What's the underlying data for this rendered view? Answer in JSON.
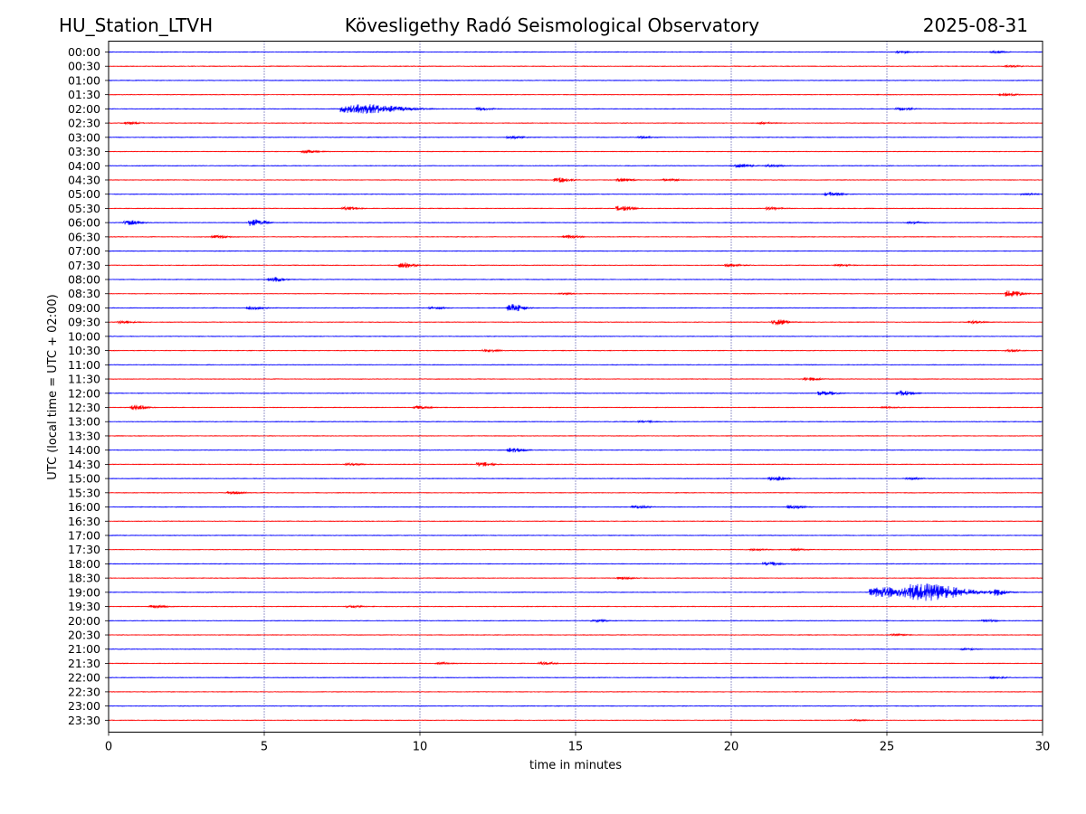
{
  "header": {
    "station": "HU_Station_LTVH",
    "observatory": "Kövesligethy Radó Seismological Observatory",
    "date": "2025-08-31"
  },
  "chart_data": {
    "type": "line",
    "title": "Kövesligethy Radó Seismological Observatory",
    "xlabel": "time in minutes",
    "ylabel": "UTC (local time = UTC + 02:00)",
    "xlim": [
      0,
      30
    ],
    "xticks": [
      0,
      5,
      10,
      15,
      20,
      25,
      30
    ],
    "grid": "vertical dotted at 5-minute intervals",
    "colors": {
      "even_rows": "#0000ff",
      "odd_rows": "#ff0000",
      "grid": "#000080"
    },
    "rows": [
      {
        "label": "00:00",
        "events": [
          [
            25.5,
            0.8
          ],
          [
            28.5,
            0.6
          ]
        ]
      },
      {
        "label": "00:30",
        "events": [
          [
            29.0,
            0.5
          ]
        ]
      },
      {
        "label": "01:00",
        "events": []
      },
      {
        "label": "01:30",
        "events": [
          [
            28.8,
            1.0
          ]
        ]
      },
      {
        "label": "02:00",
        "events": [
          [
            8.2,
            3.2
          ],
          [
            12.0,
            0.8
          ],
          [
            25.5,
            1.0
          ]
        ]
      },
      {
        "label": "02:30",
        "events": [
          [
            0.7,
            0.7
          ],
          [
            21.0,
            0.5
          ]
        ]
      },
      {
        "label": "03:00",
        "events": [
          [
            13.0,
            0.8
          ],
          [
            17.2,
            0.6
          ]
        ]
      },
      {
        "label": "03:30",
        "events": [
          [
            6.4,
            1.0
          ]
        ]
      },
      {
        "label": "04:00",
        "events": [
          [
            20.3,
            1.2
          ],
          [
            21.3,
            0.8
          ]
        ]
      },
      {
        "label": "04:30",
        "events": [
          [
            14.5,
            1.8
          ],
          [
            16.5,
            1.2
          ],
          [
            18.0,
            0.8
          ]
        ]
      },
      {
        "label": "05:00",
        "events": [
          [
            23.2,
            1.4
          ],
          [
            29.5,
            0.5
          ]
        ]
      },
      {
        "label": "05:30",
        "events": [
          [
            7.7,
            1.2
          ],
          [
            16.5,
            1.8
          ],
          [
            21.3,
            1.0
          ]
        ]
      },
      {
        "label": "06:00",
        "events": [
          [
            0.7,
            1.5
          ],
          [
            4.7,
            2.8
          ],
          [
            25.8,
            0.7
          ]
        ]
      },
      {
        "label": "06:30",
        "events": [
          [
            3.5,
            1.0
          ],
          [
            14.8,
            1.0
          ]
        ]
      },
      {
        "label": "07:00",
        "events": []
      },
      {
        "label": "07:30",
        "events": [
          [
            9.5,
            1.8
          ],
          [
            20.0,
            1.0
          ],
          [
            23.5,
            0.8
          ]
        ]
      },
      {
        "label": "08:00",
        "events": [
          [
            5.3,
            1.6
          ]
        ]
      },
      {
        "label": "08:30",
        "events": [
          [
            14.6,
            0.5
          ],
          [
            29.0,
            2.6
          ]
        ]
      },
      {
        "label": "09:00",
        "events": [
          [
            4.6,
            1.2
          ],
          [
            13.0,
            2.6
          ],
          [
            10.5,
            0.8
          ]
        ]
      },
      {
        "label": "09:30",
        "events": [
          [
            0.5,
            0.8
          ],
          [
            21.5,
            2.0
          ],
          [
            27.8,
            0.8
          ]
        ]
      },
      {
        "label": "10:00",
        "events": []
      },
      {
        "label": "10:30",
        "events": [
          [
            12.2,
            1.0
          ],
          [
            29.0,
            0.6
          ]
        ]
      },
      {
        "label": "11:00",
        "events": []
      },
      {
        "label": "11:30",
        "events": [
          [
            22.5,
            1.2
          ]
        ]
      },
      {
        "label": "12:00",
        "events": [
          [
            23.0,
            1.6
          ],
          [
            25.5,
            1.8
          ]
        ]
      },
      {
        "label": "12:30",
        "events": [
          [
            0.9,
            1.8
          ],
          [
            10.0,
            1.0
          ],
          [
            25.0,
            0.6
          ]
        ]
      },
      {
        "label": "13:00",
        "events": [
          [
            17.2,
            0.6
          ]
        ]
      },
      {
        "label": "13:30",
        "events": []
      },
      {
        "label": "14:00",
        "events": [
          [
            13.0,
            1.6
          ]
        ]
      },
      {
        "label": "14:30",
        "events": [
          [
            12.0,
            1.5
          ],
          [
            7.8,
            0.7
          ]
        ]
      },
      {
        "label": "15:00",
        "events": [
          [
            21.4,
            1.8
          ],
          [
            25.8,
            0.6
          ]
        ]
      },
      {
        "label": "15:30",
        "events": [
          [
            4.0,
            1.0
          ]
        ]
      },
      {
        "label": "16:00",
        "events": [
          [
            17.0,
            1.0
          ],
          [
            22.0,
            1.2
          ]
        ]
      },
      {
        "label": "16:30",
        "events": []
      },
      {
        "label": "17:00",
        "events": []
      },
      {
        "label": "17:30",
        "events": [
          [
            20.8,
            0.6
          ],
          [
            22.1,
            0.6
          ]
        ]
      },
      {
        "label": "18:00",
        "events": [
          [
            21.2,
            1.4
          ]
        ]
      },
      {
        "label": "18:30",
        "events": [
          [
            16.5,
            0.8
          ]
        ]
      },
      {
        "label": "19:00",
        "events": [
          [
            26.5,
            4.2
          ],
          [
            25.2,
            3.6
          ],
          [
            28.5,
            2.0
          ]
        ]
      },
      {
        "label": "19:30",
        "events": [
          [
            1.5,
            1.0
          ],
          [
            7.8,
            0.8
          ]
        ]
      },
      {
        "label": "20:00",
        "events": [
          [
            15.7,
            0.6
          ],
          [
            28.2,
            0.8
          ]
        ]
      },
      {
        "label": "20:30",
        "events": [
          [
            25.3,
            0.5
          ]
        ]
      },
      {
        "label": "21:00",
        "events": [
          [
            27.5,
            0.5
          ]
        ]
      },
      {
        "label": "21:30",
        "events": [
          [
            14.0,
            1.0
          ],
          [
            10.7,
            0.6
          ]
        ]
      },
      {
        "label": "22:00",
        "events": [
          [
            28.5,
            0.5
          ]
        ]
      },
      {
        "label": "22:30",
        "events": []
      },
      {
        "label": "23:00",
        "events": []
      },
      {
        "label": "23:30",
        "events": [
          [
            24.0,
            0.4
          ]
        ]
      }
    ]
  }
}
